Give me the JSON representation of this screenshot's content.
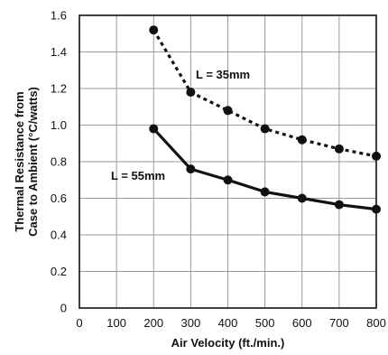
{
  "chart_data": {
    "type": "line",
    "xlabel": "Air Velocity (ft./min.)",
    "ylabel_lines": [
      "Thermal Resistance from",
      "Case to Ambient (°C/watts)"
    ],
    "xlim": [
      0,
      800
    ],
    "ylim": [
      0,
      1.6
    ],
    "x_ticks": [
      "0",
      "100",
      "200",
      "300",
      "400",
      "500",
      "600",
      "700",
      "800"
    ],
    "y_ticks": [
      "0",
      "0.2",
      "0.4",
      "0.6",
      "0.8",
      "1.0",
      "1.2",
      "1.4",
      "1.6"
    ],
    "grid": true,
    "legend": "none",
    "series": [
      {
        "name": "L = 35mm",
        "style": "dotted",
        "color": "#111111",
        "x": [
          200,
          300,
          400,
          500,
          600,
          700,
          800
        ],
        "y": [
          1.52,
          1.18,
          1.08,
          0.98,
          0.92,
          0.87,
          0.83
        ]
      },
      {
        "name": "L = 55mm",
        "style": "solid",
        "color": "#111111",
        "x": [
          200,
          300,
          400,
          500,
          600,
          700,
          800
        ],
        "y": [
          0.98,
          0.76,
          0.7,
          0.635,
          0.6,
          0.565,
          0.54
        ]
      }
    ]
  }
}
